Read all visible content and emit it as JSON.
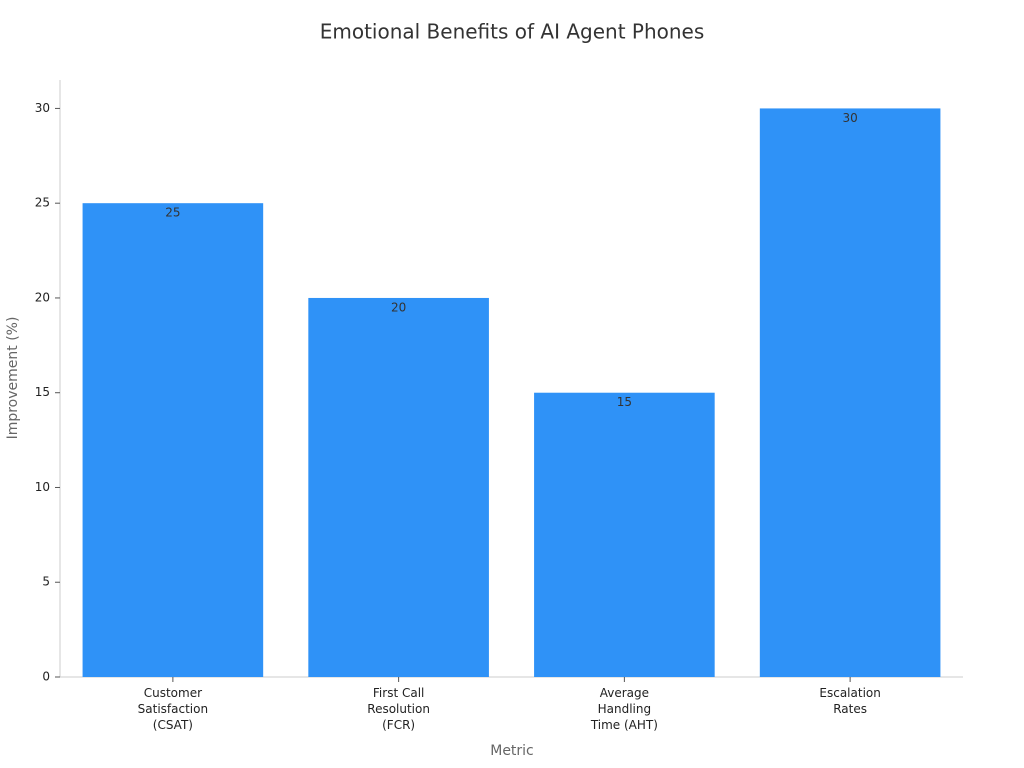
{
  "chart_data": {
    "type": "bar",
    "title": "Emotional Benefits of AI Agent Phones",
    "x_label": "Metric",
    "y_label": "Improvement (%)",
    "categories": [
      "Customer\nSatisfaction\n(CSAT)",
      "First Call\nResolution\n(FCR)",
      "Average\nHandling\nTime (AHT)",
      "Escalation\nRates"
    ],
    "values": [
      25,
      20,
      15,
      30
    ],
    "color": "#2f92f7",
    "ylim": [
      0,
      31.5
    ],
    "yticks": [
      0,
      5,
      10,
      15,
      20,
      25,
      30
    ],
    "grid": false,
    "data_labels": true
  }
}
